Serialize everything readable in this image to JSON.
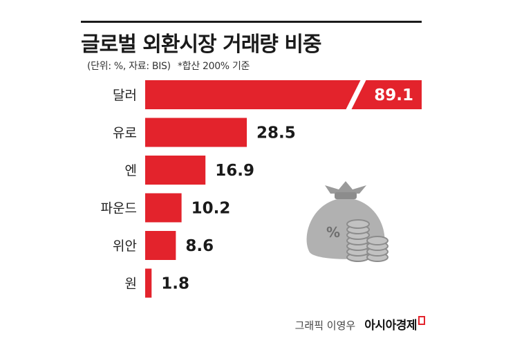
{
  "chart_data": {
    "type": "bar",
    "orientation": "horizontal",
    "title": "글로벌 외환시장 거래량 비중",
    "subtitle_unit": "(단위: %, 자료: BIS)",
    "subtitle_note": "*합산 200% 기준",
    "categories": [
      "달러",
      "유로",
      "엔",
      "파운드",
      "위안",
      "원"
    ],
    "values": [
      89.1,
      28.5,
      16.9,
      10.2,
      8.6,
      1.8
    ],
    "broken_bar": "달러",
    "bar_color": "#e3232c"
  },
  "credit": {
    "author": "그래픽 이영우",
    "brand": "아시아경제"
  },
  "icon": "money-bag-with-coins-icon"
}
